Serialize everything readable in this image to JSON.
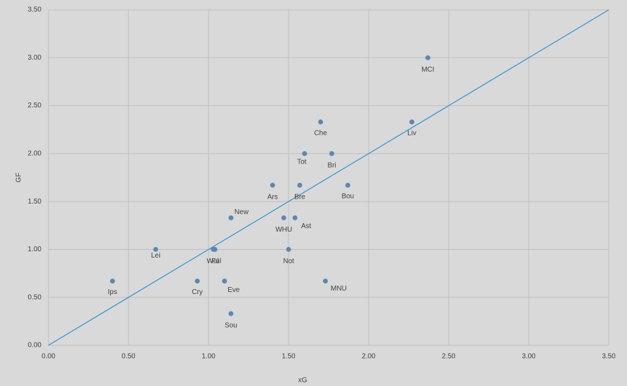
{
  "chart_data": {
    "type": "scatter",
    "x_label": "xG",
    "y_label": "GF",
    "labels": [
      "MCI",
      "Liv",
      "Che",
      "Tot",
      "Bri",
      "Ars",
      "Bre",
      "Bou",
      "New",
      "WHU",
      "Ast",
      "Lei",
      "Wol",
      "Ful",
      "Not",
      "Ips",
      "Cry",
      "Eve",
      "MNU",
      "Sou"
    ],
    "x": [
      2.37,
      2.27,
      1.7,
      1.6,
      1.77,
      1.4,
      1.57,
      1.87,
      1.14,
      1.47,
      1.54,
      0.67,
      1.03,
      1.04,
      1.5,
      0.4,
      0.93,
      1.1,
      1.73,
      1.14
    ],
    "values": [
      3.0,
      2.33,
      2.33,
      2.0,
      2.0,
      1.67,
      1.67,
      1.67,
      1.33,
      1.33,
      1.33,
      1.0,
      1.0,
      1.0,
      1.0,
      0.67,
      0.67,
      0.67,
      0.67,
      0.33
    ],
    "color": "#5b87b5",
    "diagonal_color": "#2e93d1",
    "diagonal": true,
    "grid": true,
    "xlim": [
      0,
      3.5
    ],
    "ylim": [
      0,
      3.5
    ],
    "xticks": [
      {
        "value": 0,
        "label": "0.00"
      },
      {
        "value": 0.5,
        "label": "0.50"
      },
      {
        "value": 1,
        "label": "1.00"
      },
      {
        "value": 1.5,
        "label": "1.50"
      },
      {
        "value": 2,
        "label": "2.00"
      },
      {
        "value": 2.5,
        "label": "2.50"
      },
      {
        "value": 3,
        "label": "3.00"
      },
      {
        "value": 3.5,
        "label": "3.50"
      }
    ],
    "yticks": [
      {
        "value": 0,
        "label": "0.00"
      },
      {
        "value": 0.5,
        "label": "0.50"
      },
      {
        "value": 1,
        "label": "1.00"
      },
      {
        "value": 1.5,
        "label": "1.50"
      },
      {
        "value": 2,
        "label": "2.00"
      },
      {
        "value": 2.5,
        "label": "2.50"
      },
      {
        "value": 3,
        "label": "3.00"
      },
      {
        "value": 3.5,
        "label": "3.50"
      }
    ]
  }
}
